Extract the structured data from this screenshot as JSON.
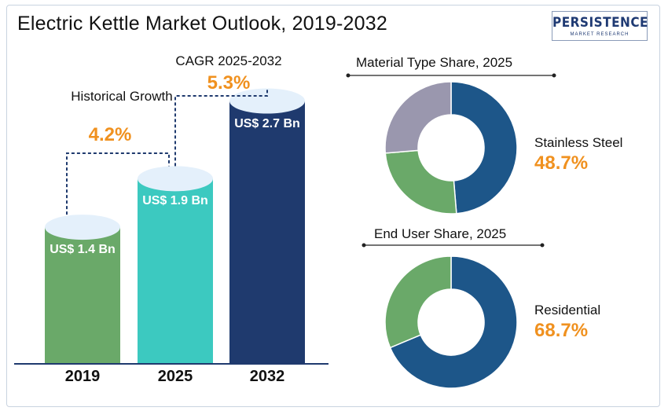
{
  "title": "Electric Kettle Market Outlook, 2019-2032",
  "logo": {
    "main": "PERSISTENCE",
    "sub": "MARKET RESEARCH"
  },
  "annotations": {
    "historical_label": "Historical Growth",
    "historical_value": "4.2%",
    "cagr_label": "CAGR 2025-2032",
    "cagr_value": "5.3%"
  },
  "colors": {
    "bar_2019": "#6aa969",
    "bar_2025": "#3cc9c0",
    "bar_2032": "#1f3a6e",
    "top_ellipse": "#e4f0fb",
    "accent": "#f0911f",
    "donut_dark": "#1d5689",
    "donut_green": "#6aa969",
    "donut_gray": "#9a97ae"
  },
  "chart_data": [
    {
      "type": "bar",
      "title": "",
      "categories": [
        "2019",
        "2025",
        "2032"
      ],
      "values": [
        1.4,
        1.9,
        2.7
      ],
      "value_labels": [
        "US$ 1.4 Bn",
        "US$ 1.9 Bn",
        "US$ 2.7 Bn"
      ],
      "ylabel": "",
      "ylim": [
        0,
        3.0
      ]
    },
    {
      "type": "pie",
      "title": "Material Type Share, 2025",
      "labels": [
        "Stainless Steel",
        "",
        ""
      ],
      "values": [
        48.7,
        25.0,
        26.3
      ],
      "highlight_label": "Stainless Steel",
      "highlight_value": "48.7%"
    },
    {
      "type": "pie",
      "title": "End User Share, 2025",
      "labels": [
        "Residential",
        ""
      ],
      "values": [
        68.7,
        31.3
      ],
      "highlight_label": "Residential",
      "highlight_value": "68.7%"
    }
  ]
}
